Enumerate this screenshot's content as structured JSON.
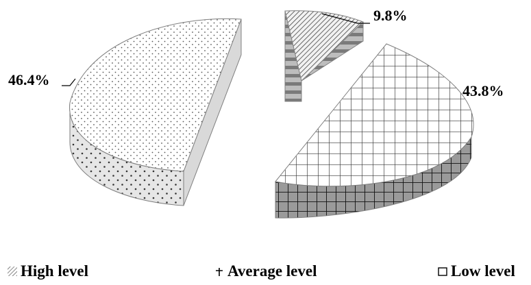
{
  "chart_data": {
    "type": "pie",
    "style": "3d-exploded",
    "slices": [
      {
        "label": "High level",
        "value": 46.4,
        "value_label": "46.4%",
        "pattern": "dots",
        "icon": "dots-swatch-icon"
      },
      {
        "label": "Low level",
        "value": 9.8,
        "value_label": "9.8%",
        "pattern": "diagonal-stripes",
        "icon": "grid-swatch-icon"
      },
      {
        "label": "Average level",
        "value": 43.8,
        "value_label": "43.8%",
        "pattern": "grid",
        "icon": "cross-swatch-icon"
      }
    ],
    "legend": {
      "position": "bottom",
      "entries": [
        {
          "label": "High level",
          "icon": "diagonal-hatch-icon"
        },
        {
          "label": "Average level",
          "icon": "cross-mark-icon"
        },
        {
          "label": "Low level",
          "icon": "square-outline-icon"
        }
      ]
    },
    "colors": {
      "fill": "#ffffff",
      "side_fill": "#d9d9d9",
      "pattern": "#555555",
      "outline": "#7f7f7f"
    }
  }
}
